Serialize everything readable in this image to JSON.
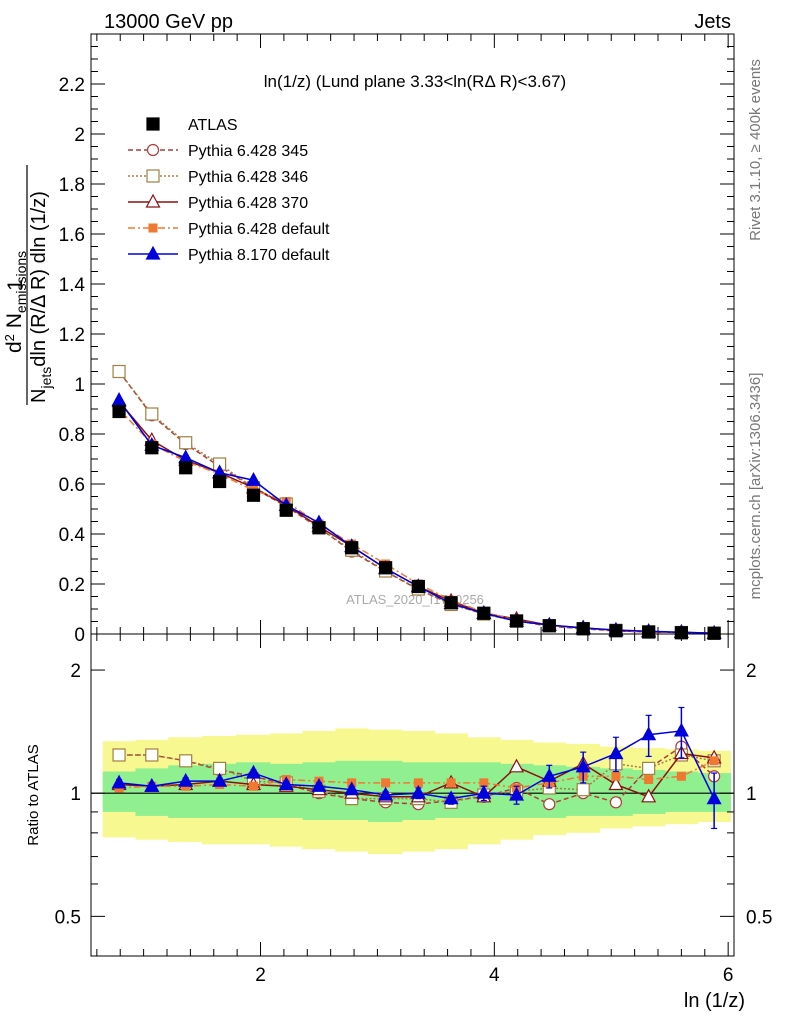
{
  "header": {
    "left": "13000 GeV pp",
    "right": "Jets"
  },
  "side_labels": {
    "rivet": "Rivet 3.1.10, ≥ 400k events",
    "mcplots": "mcplots.cern.ch [arXiv:1306.3436]"
  },
  "colors": {
    "atlas": "#000000",
    "p345": "#b03a3a",
    "p346": "#a08040",
    "p370": "#8b1010",
    "p6def": "#f07830",
    "p8def": "#0000dd",
    "band_inner": "#90f090",
    "band_outer": "#f8f890"
  },
  "chart_data": [
    {
      "type": "line",
      "panel": "main",
      "title": "ln(1/z) (Lund plane 3.33<ln(RΔ R)<3.67)",
      "watermark": "ATLAS_2020_I1790256",
      "ylabel_parts": {
        "one": "1",
        "den_a": "N",
        "den_b": "jets",
        "den_c": "dln (R/Δ R) dln (1/z)",
        "num_a": "d",
        "num_b": "2",
        "num_c": " N",
        "num_d": "emissions"
      },
      "xlim": [
        0.55,
        6.05
      ],
      "ylim": [
        0,
        2.4
      ],
      "x_ticks": [
        2,
        4,
        6
      ],
      "y_ticks": [
        "0",
        "0.2",
        "0.4",
        "0.6",
        "0.8",
        "1",
        "1.2",
        "1.4",
        "1.6",
        "1.8",
        "2",
        "2.2"
      ],
      "x": [
        0.79,
        1.07,
        1.36,
        1.65,
        1.94,
        2.22,
        2.5,
        2.78,
        3.07,
        3.35,
        3.63,
        3.91,
        4.19,
        4.47,
        4.76,
        5.04,
        5.32,
        5.6,
        5.88
      ],
      "series": [
        {
          "name": "ATLAS",
          "key": "atlas",
          "values": [
            0.89,
            0.745,
            0.665,
            0.61,
            0.555,
            0.495,
            0.425,
            0.345,
            0.265,
            0.19,
            0.125,
            0.083,
            0.052,
            0.033,
            0.021,
            0.013,
            0.008,
            0.005,
            0.003
          ]
        },
        {
          "name": "Pythia 6.428 345",
          "key": "p345",
          "values": [
            1.05,
            0.875,
            0.76,
            0.67,
            0.585,
            0.51,
            0.425,
            0.33,
            0.25,
            0.178,
            0.12,
            0.08,
            0.053,
            0.031,
            0.021,
            0.012,
            0.009,
            0.0062,
            0.0032
          ]
        },
        {
          "name": "Pythia 6.428 346",
          "key": "p346",
          "values": [
            1.05,
            0.88,
            0.765,
            0.68,
            0.585,
            0.52,
            0.425,
            0.335,
            0.252,
            0.18,
            0.118,
            0.08,
            0.052,
            0.033,
            0.021,
            0.015,
            0.0085,
            0.006,
            0.0035
          ]
        },
        {
          "name": "Pythia 6.428 370",
          "key": "p370",
          "values": [
            0.93,
            0.775,
            0.695,
            0.645,
            0.585,
            0.515,
            0.43,
            0.35,
            0.262,
            0.19,
            0.132,
            0.083,
            0.06,
            0.035,
            0.025,
            0.014,
            0.0078,
            0.0063,
            0.0036
          ]
        },
        {
          "name": "Pythia 6.428 default",
          "key": "p6def",
          "values": [
            0.9,
            0.76,
            0.69,
            0.64,
            0.575,
            0.53,
            0.44,
            0.36,
            0.28,
            0.2,
            0.135,
            0.088,
            0.054,
            0.035,
            0.023,
            0.014,
            0.0088,
            0.0055,
            0.0036
          ]
        },
        {
          "name": "Pythia 8.170 default",
          "key": "p8def",
          "values": [
            0.935,
            0.755,
            0.705,
            0.645,
            0.615,
            0.515,
            0.445,
            0.35,
            0.262,
            0.19,
            0.122,
            0.083,
            0.051,
            0.036,
            0.024,
            0.016,
            0.011,
            0.0072,
            0.0029
          ]
        }
      ]
    },
    {
      "type": "line",
      "panel": "ratio",
      "ylabel": "Ratio to ATLAS",
      "ylog": true,
      "xlim": [
        0.55,
        6.05
      ],
      "ylim": [
        0.4,
        2.45
      ],
      "xlabel": "ln (1/z)",
      "x_ticks": [
        2,
        4,
        6
      ],
      "y_ticks": [
        "0.5",
        "1",
        "2"
      ],
      "x_edges": [
        0.65,
        0.93,
        1.21,
        1.5,
        1.79,
        2.08,
        2.36,
        2.64,
        2.92,
        3.21,
        3.49,
        3.77,
        4.05,
        4.33,
        4.61,
        4.9,
        5.18,
        5.46,
        5.74,
        6.02
      ],
      "band_inner": {
        "lo": [
          0.9,
          0.88,
          0.87,
          0.87,
          0.87,
          0.87,
          0.86,
          0.86,
          0.85,
          0.86,
          0.87,
          0.87,
          0.87,
          0.87,
          0.88,
          0.88,
          0.89,
          0.9,
          0.9
        ],
        "hi": [
          1.13,
          1.15,
          1.17,
          1.18,
          1.19,
          1.18,
          1.19,
          1.2,
          1.2,
          1.19,
          1.19,
          1.19,
          1.18,
          1.17,
          1.16,
          1.15,
          1.14,
          1.13,
          1.12
        ]
      },
      "band_outer": {
        "lo": [
          0.78,
          0.77,
          0.76,
          0.75,
          0.75,
          0.74,
          0.73,
          0.72,
          0.71,
          0.72,
          0.73,
          0.75,
          0.77,
          0.79,
          0.8,
          0.82,
          0.83,
          0.84,
          0.85
        ],
        "hi": [
          1.34,
          1.35,
          1.37,
          1.38,
          1.39,
          1.4,
          1.42,
          1.44,
          1.43,
          1.42,
          1.4,
          1.37,
          1.35,
          1.33,
          1.32,
          1.3,
          1.29,
          1.28,
          1.27
        ]
      },
      "x": [
        0.79,
        1.07,
        1.36,
        1.65,
        1.94,
        2.22,
        2.5,
        2.78,
        3.07,
        3.35,
        3.63,
        3.91,
        4.19,
        4.47,
        4.76,
        5.04,
        5.32,
        5.6,
        5.88
      ],
      "reference": 1,
      "series": [
        {
          "key": "p345",
          "values": [
            1.24,
            1.24,
            1.2,
            1.14,
            1.1,
            1.05,
            1.0,
            0.97,
            0.95,
            0.94,
            0.96,
            0.98,
            1.03,
            0.94,
            1.0,
            0.95,
            1.15,
            1.3,
            1.1
          ]
        },
        {
          "key": "p346",
          "values": [
            1.24,
            1.24,
            1.2,
            1.15,
            1.07,
            1.06,
            1.01,
            0.97,
            0.97,
            0.97,
            0.95,
            0.99,
            1.01,
            1.03,
            1.02,
            1.18,
            1.15,
            1.24,
            1.2
          ]
        },
        {
          "key": "p370",
          "values": [
            1.05,
            1.04,
            1.05,
            1.07,
            1.05,
            1.04,
            1.02,
            1.0,
            0.98,
            0.98,
            1.06,
            0.98,
            1.16,
            1.07,
            1.18,
            1.05,
            0.98,
            1.25,
            1.22
          ]
        },
        {
          "key": "p6def",
          "values": [
            1.03,
            1.04,
            1.04,
            1.05,
            1.04,
            1.08,
            1.07,
            1.06,
            1.06,
            1.06,
            1.06,
            1.06,
            1.03,
            1.06,
            1.1,
            1.1,
            1.08,
            1.1,
            1.2
          ]
        },
        {
          "key": "p8def",
          "values": [
            1.06,
            1.04,
            1.07,
            1.07,
            1.12,
            1.05,
            1.04,
            1.02,
            0.99,
            1.0,
            0.97,
            1.0,
            0.99,
            1.1,
            1.16,
            1.25,
            1.39,
            1.42,
            0.97
          ],
          "err": [
            0.02,
            0.02,
            0.02,
            0.02,
            0.02,
            0.02,
            0.02,
            0.02,
            0.02,
            0.03,
            0.03,
            0.04,
            0.05,
            0.07,
            0.1,
            0.12,
            0.16,
            0.2,
            0.15
          ]
        }
      ]
    }
  ]
}
